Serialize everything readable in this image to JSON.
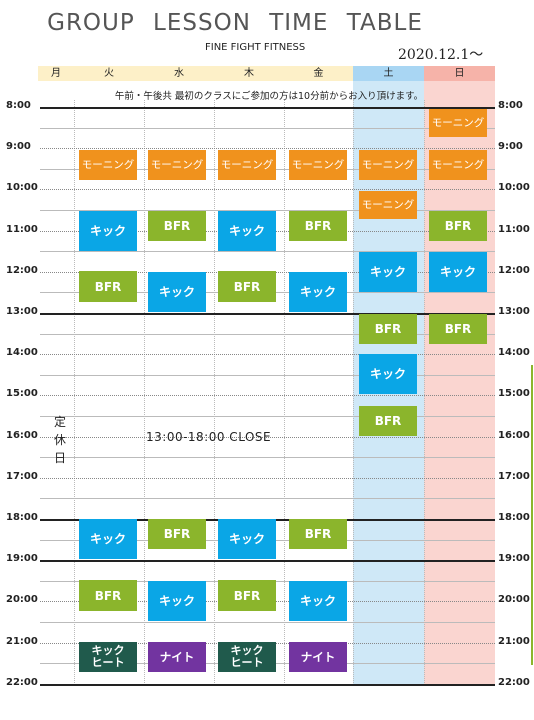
{
  "header": {
    "title": "GROUP  LESSON  TIME  TABLE",
    "subtitle": "FINE FIGHT FITNESS",
    "date": "2020.12.1〜"
  },
  "days": [
    "月",
    "火",
    "水",
    "木",
    "金",
    "土",
    "日"
  ],
  "note": "午前・午後共 最初のクラスにご参加の方は10分前からお入り頂けます。",
  "times": [
    "8:00",
    "9:00",
    "10:00",
    "11:00",
    "12:00",
    "13:00",
    "14:00",
    "15:00",
    "16:00",
    "17:00",
    "18:00",
    "19:00",
    "20:00",
    "21:00",
    "22:00"
  ],
  "closed_text": "13:00-18:00  CLOSE",
  "monday_label": [
    "定",
    "休",
    "日"
  ],
  "lesson_labels": {
    "morning": "モーニング",
    "kick": "キック",
    "bfr": "BFR",
    "night": "ナイト",
    "kick_heat": "キック ヒート"
  },
  "colors": {
    "morning": "#f0921d",
    "kick": "#0aa6e6",
    "bfr": "#8bb52c",
    "night": "#7234a0",
    "kick_heat": "#205a4c",
    "saturday_bg": "#cfe8f7",
    "sunday_bg": "#fad5d0"
  }
}
